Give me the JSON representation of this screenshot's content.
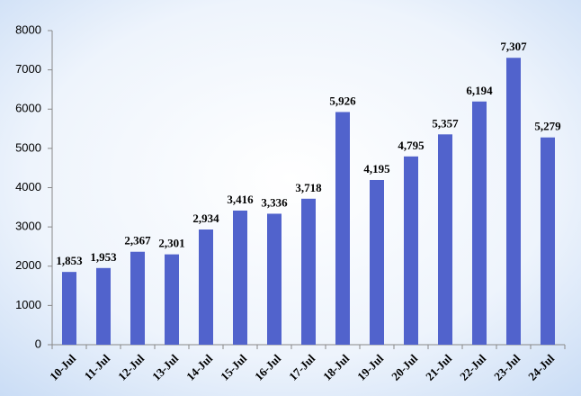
{
  "chart_data": {
    "type": "bar",
    "categories": [
      "10-Jul",
      "11-Jul",
      "12-Jul",
      "13-Jul",
      "14-Jul",
      "15-Jul",
      "16-Jul",
      "17-Jul",
      "18-Jul",
      "19-Jul",
      "20-Jul",
      "21-Jul",
      "22-Jul",
      "23-Jul",
      "24-Jul"
    ],
    "values": [
      1853,
      1953,
      2367,
      2301,
      2934,
      3416,
      3336,
      3718,
      5926,
      4195,
      4795,
      5357,
      6194,
      7307,
      5279
    ],
    "value_labels": [
      "1,853",
      "1,953",
      "2,367",
      "2,301",
      "2,934",
      "3,416",
      "3,336",
      "3,718",
      "5,926",
      "4,195",
      "4,795",
      "5,357",
      "6,194",
      "7,307",
      "5,279"
    ],
    "color": "#5163cc",
    "ylim": [
      0,
      8000
    ],
    "yticks": [
      0,
      1000,
      2000,
      3000,
      4000,
      5000,
      6000,
      7000,
      8000
    ]
  }
}
